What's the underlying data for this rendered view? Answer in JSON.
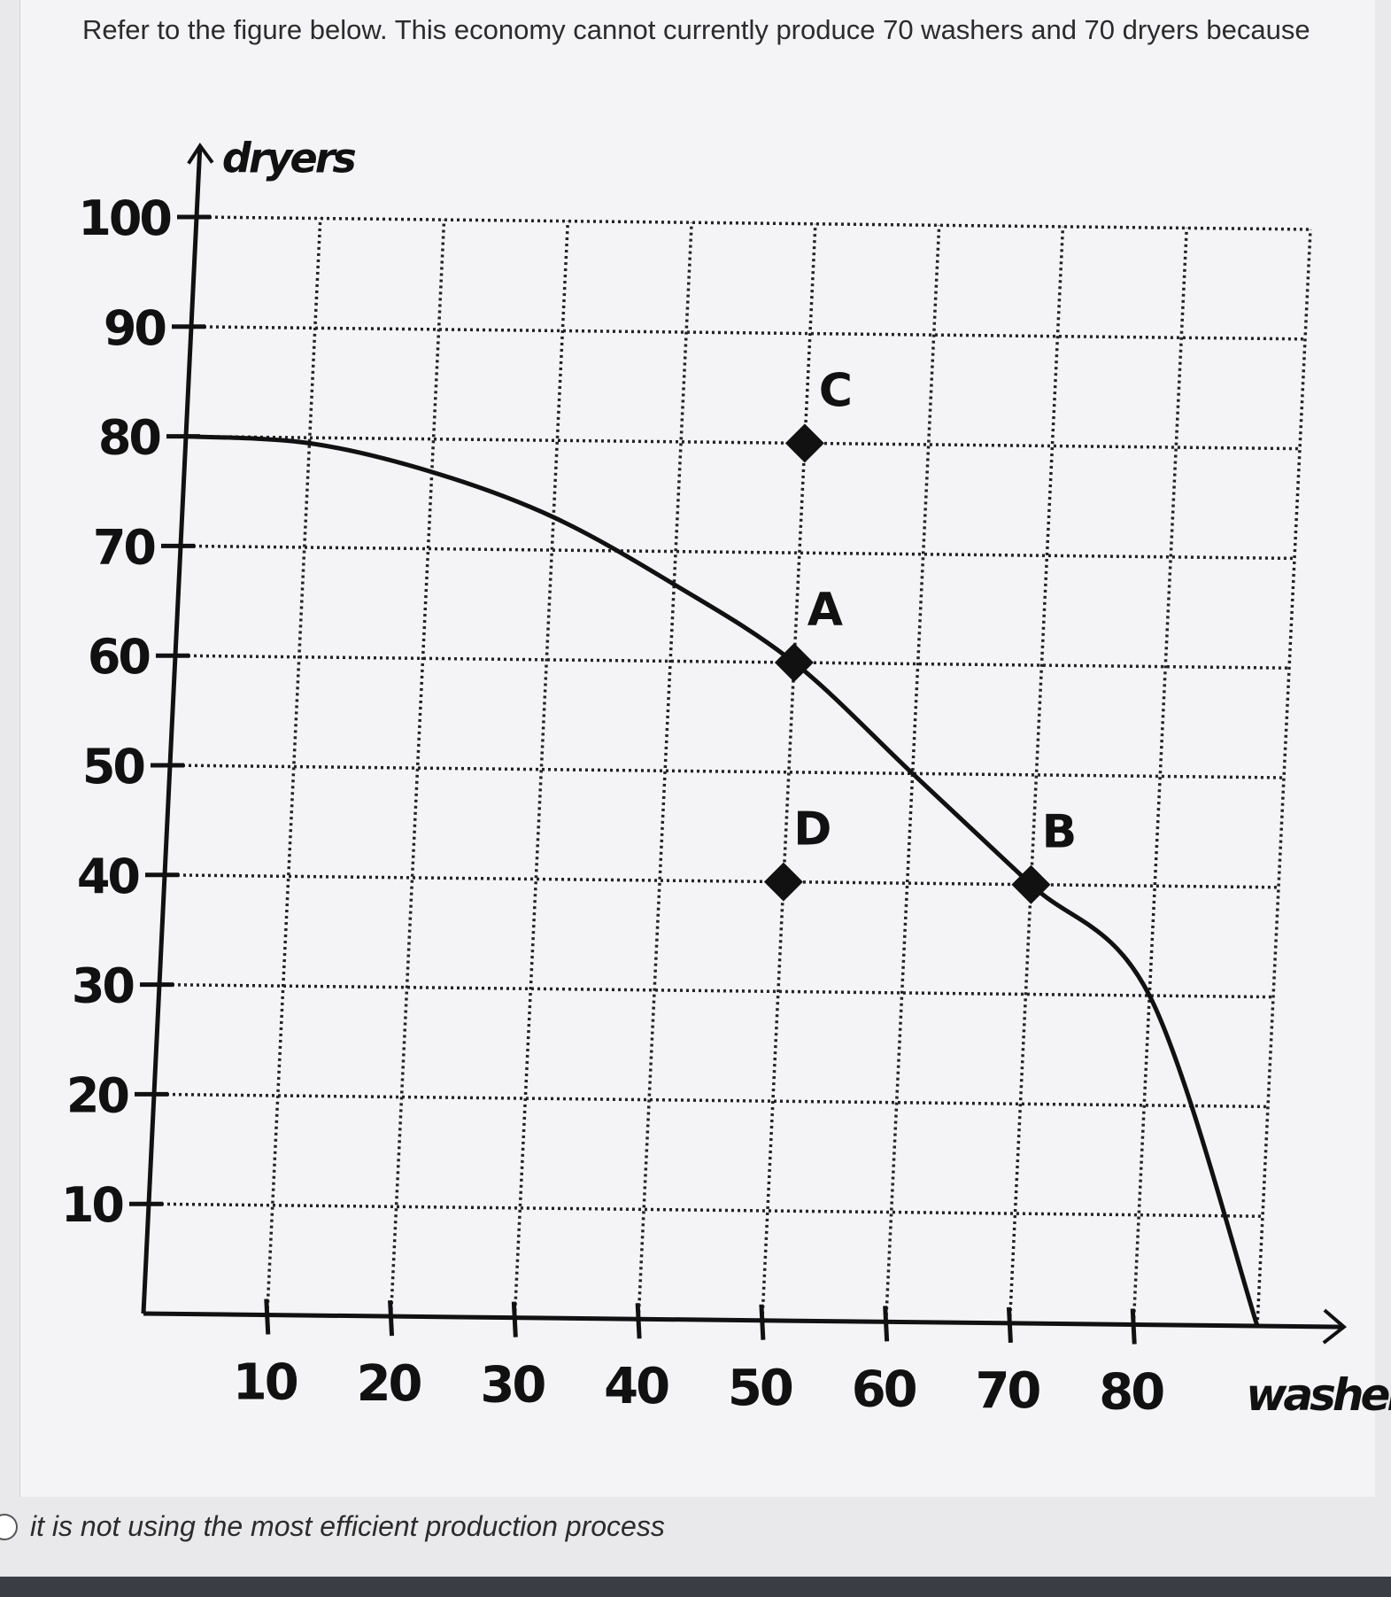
{
  "question": {
    "text": "Refer to the figure below. This economy cannot currently produce 70 washers and 70 dryers because"
  },
  "chart_data": {
    "type": "line",
    "title": "",
    "xlabel": "washers",
    "ylabel": "dryers",
    "xlim": [
      0,
      90
    ],
    "ylim": [
      0,
      100
    ],
    "x_ticks": [
      10,
      20,
      30,
      40,
      50,
      60,
      70,
      80
    ],
    "y_ticks": [
      10,
      20,
      30,
      40,
      50,
      60,
      70,
      80,
      90,
      100
    ],
    "grid": true,
    "series": [
      {
        "x": [
          0,
          10,
          20,
          30,
          40,
          50,
          60,
          70,
          80,
          90
        ],
        "y": [
          80,
          79.5,
          77,
          73,
          67,
          60,
          50,
          40,
          30,
          0
        ]
      }
    ],
    "points": [
      {
        "label": "C",
        "x": 50,
        "y": 80
      },
      {
        "label": "A",
        "x": 50,
        "y": 60
      },
      {
        "label": "D",
        "x": 50,
        "y": 40
      },
      {
        "label": "B",
        "x": 70,
        "y": 40
      }
    ]
  },
  "answer_options": [
    {
      "text": "it is not using the most efficient production process"
    }
  ],
  "colors": {
    "ink": "#111111",
    "grid": "#222222",
    "text": "#2b2b2b"
  }
}
